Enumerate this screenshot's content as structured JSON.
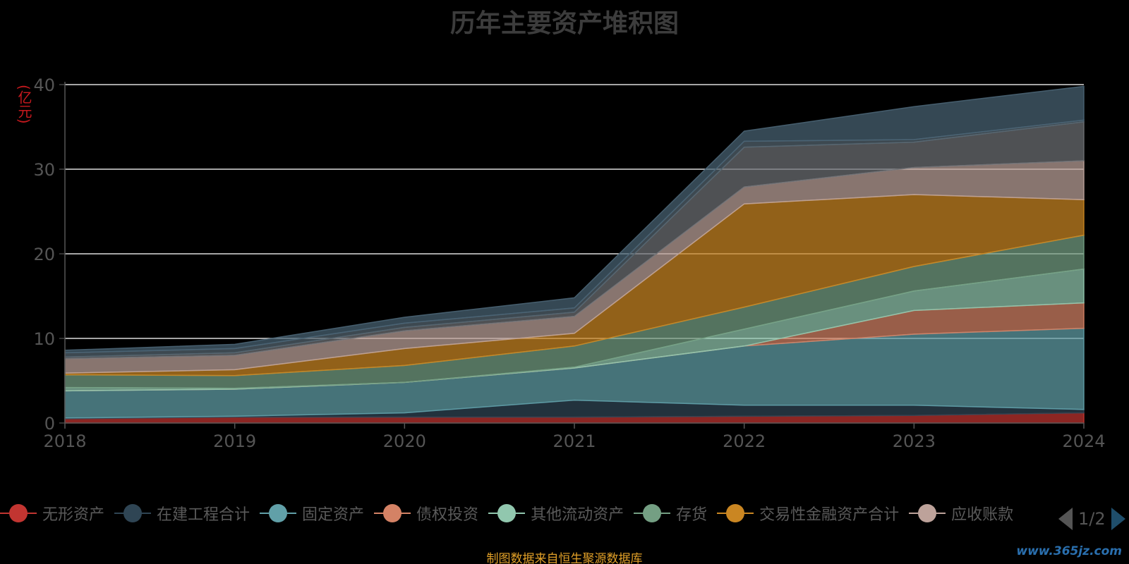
{
  "chart_data": {
    "type": "area",
    "title": "历年主要资产堆积图",
    "y_unit": "(亿元)",
    "x": [
      "2018",
      "2019",
      "2020",
      "2021",
      "2022",
      "2023",
      "2024"
    ],
    "ylim": [
      0,
      40
    ],
    "y_ticks": [
      "0",
      "10",
      "20",
      "30",
      "40"
    ],
    "stacked": true,
    "grid": true,
    "legend_position": "bottom",
    "series": [
      {
        "name": "无形资产",
        "color": "#c23531",
        "values": [
          0.5,
          0.7,
          0.7,
          0.7,
          0.8,
          0.9,
          1.2
        ]
      },
      {
        "name": "在建工程合计",
        "color": "#2f4554",
        "values": [
          0.1,
          0.1,
          0.5,
          2.0,
          1.3,
          1.2,
          0.4
        ]
      },
      {
        "name": "固定资产",
        "color": "#61a0a8",
        "values": [
          3.2,
          3.2,
          3.6,
          3.8,
          7.0,
          8.4,
          9.6
        ]
      },
      {
        "name": "债权投资",
        "color": "#d48265",
        "values": [
          0.0,
          0.0,
          0.0,
          0.0,
          0.0,
          2.8,
          3.0
        ]
      },
      {
        "name": "其他流动资产",
        "color": "#91c7ae",
        "values": [
          0.4,
          0.1,
          0.0,
          0.1,
          2.0,
          2.3,
          4.0
        ]
      },
      {
        "name": "存货",
        "color": "#749f83",
        "values": [
          1.5,
          1.5,
          2.0,
          2.5,
          2.6,
          2.9,
          4.0
        ]
      },
      {
        "name": "交易性金融资产合计",
        "color": "#ca8622",
        "values": [
          0.2,
          0.7,
          2.0,
          1.5,
          12.2,
          8.5,
          4.2
        ]
      },
      {
        "name": "应收账款",
        "color": "#bda29a",
        "values": [
          1.7,
          1.7,
          2.1,
          2.0,
          2.0,
          3.2,
          4.6
        ]
      },
      {
        "name": "",
        "color": "#6e7074",
        "values": [
          0.2,
          0.3,
          0.4,
          0.5,
          4.7,
          3.0,
          4.6
        ]
      },
      {
        "name": "",
        "color": "#546570",
        "values": [
          0.5,
          0.5,
          0.5,
          0.5,
          0.7,
          0.3,
          0.2
        ]
      },
      {
        "name": "",
        "color": "#4a6474",
        "values": [
          0.3,
          0.5,
          0.7,
          1.2,
          1.2,
          3.9,
          4.0
        ]
      }
    ]
  },
  "legend": {
    "page_text": "1/2"
  },
  "footer": {
    "source": "制图数据来自恒生聚源数据库",
    "watermark": "www.365jz.com"
  }
}
